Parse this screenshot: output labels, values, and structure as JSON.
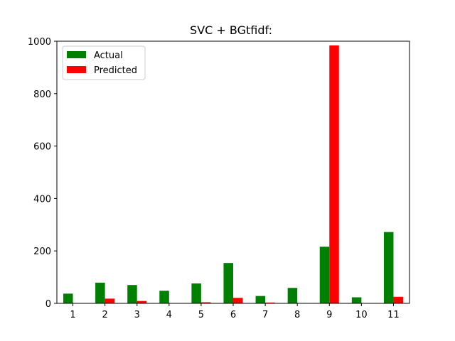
{
  "chart_data": {
    "type": "bar",
    "title": "SVC + BGtfidf:",
    "xlabel": "",
    "ylabel": "",
    "categories": [
      "1",
      "2",
      "3",
      "4",
      "5",
      "6",
      "7",
      "8",
      "9",
      "10",
      "11"
    ],
    "series": [
      {
        "name": "Actual",
        "color": "#008000",
        "values": [
          37,
          79,
          70,
          48,
          76,
          154,
          28,
          59,
          216,
          23,
          272
        ]
      },
      {
        "name": "Predicted",
        "color": "#ff0000",
        "values": [
          0,
          18,
          9,
          0,
          4,
          21,
          3,
          0,
          984,
          0,
          25
        ]
      }
    ],
    "ylim": [
      0,
      1000
    ],
    "yticks": [
      0,
      200,
      400,
      600,
      800,
      1000
    ],
    "legend_position": "top-left",
    "grid": false
  }
}
